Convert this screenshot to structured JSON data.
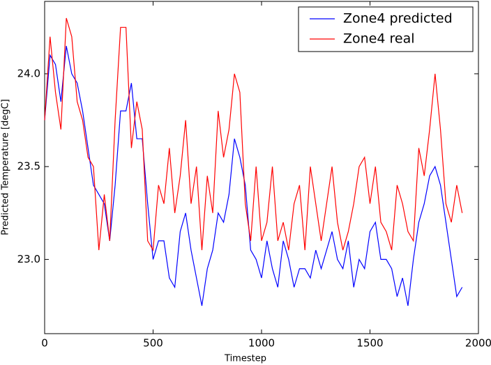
{
  "chart_data": {
    "type": "line",
    "xlabel": "Timestep",
    "ylabel": "Predicted Temperature [degC]",
    "x": [
      0,
      25,
      50,
      75,
      100,
      125,
      150,
      175,
      200,
      225,
      250,
      275,
      300,
      325,
      350,
      375,
      400,
      425,
      450,
      475,
      500,
      525,
      550,
      575,
      600,
      625,
      650,
      675,
      700,
      725,
      750,
      775,
      800,
      825,
      850,
      875,
      900,
      925,
      950,
      975,
      1000,
      1025,
      1050,
      1075,
      1100,
      1125,
      1150,
      1175,
      1200,
      1225,
      1250,
      1275,
      1300,
      1325,
      1350,
      1375,
      1400,
      1425,
      1450,
      1475,
      1500,
      1525,
      1550,
      1575,
      1600,
      1625,
      1650,
      1675,
      1700,
      1725,
      1750,
      1775,
      1800,
      1825,
      1850,
      1875,
      1900,
      1925
    ],
    "series": [
      {
        "name": "Zone4 predicted",
        "color": "#0000ff",
        "values": [
          23.75,
          24.1,
          24.05,
          23.85,
          24.15,
          24.0,
          23.95,
          23.8,
          23.6,
          23.4,
          23.35,
          23.3,
          23.1,
          23.4,
          23.8,
          23.8,
          23.95,
          23.65,
          23.65,
          23.3,
          23.0,
          23.1,
          23.1,
          22.9,
          22.85,
          23.15,
          23.25,
          23.05,
          22.9,
          22.75,
          22.95,
          23.05,
          23.25,
          23.2,
          23.35,
          23.65,
          23.55,
          23.4,
          23.05,
          23.0,
          22.9,
          23.1,
          22.95,
          22.85,
          23.1,
          23.0,
          22.85,
          22.95,
          22.95,
          22.9,
          23.05,
          22.95,
          23.05,
          23.15,
          23.0,
          22.95,
          23.1,
          22.85,
          23.0,
          22.95,
          23.15,
          23.2,
          23.0,
          23.0,
          22.95,
          22.8,
          22.9,
          22.75,
          23.0,
          23.2,
          23.3,
          23.45,
          23.5,
          23.4,
          23.2,
          23.0,
          22.8,
          22.85
        ]
      },
      {
        "name": "Zone4 real",
        "color": "#ff0000",
        "values": [
          23.75,
          24.2,
          23.9,
          23.7,
          24.3,
          24.2,
          23.85,
          23.75,
          23.55,
          23.5,
          23.05,
          23.35,
          23.1,
          23.75,
          24.25,
          24.25,
          23.6,
          23.85,
          23.7,
          23.1,
          23.05,
          23.4,
          23.3,
          23.6,
          23.25,
          23.45,
          23.75,
          23.3,
          23.5,
          23.05,
          23.45,
          23.25,
          23.8,
          23.55,
          23.7,
          24.0,
          23.9,
          23.3,
          23.1,
          23.5,
          23.1,
          23.2,
          23.5,
          23.1,
          23.2,
          23.05,
          23.3,
          23.4,
          23.05,
          23.5,
          23.3,
          23.1,
          23.3,
          23.5,
          23.2,
          23.05,
          23.15,
          23.3,
          23.5,
          23.55,
          23.3,
          23.5,
          23.2,
          23.15,
          23.05,
          23.4,
          23.3,
          23.15,
          23.1,
          23.6,
          23.45,
          23.7,
          24.0,
          23.7,
          23.3,
          23.2,
          23.4,
          23.25
        ]
      }
    ],
    "xlim": [
      0,
      2000
    ],
    "xticks": [
      0,
      500,
      1000,
      1500,
      2000
    ],
    "ylim": [
      22.6,
      24.39
    ],
    "yticks": [
      {
        "value": 23.0,
        "label": "23.0"
      },
      23.5,
      {
        "value": 24.0,
        "label": "24.0"
      }
    ],
    "legend": "upper right",
    "grid": false
  }
}
